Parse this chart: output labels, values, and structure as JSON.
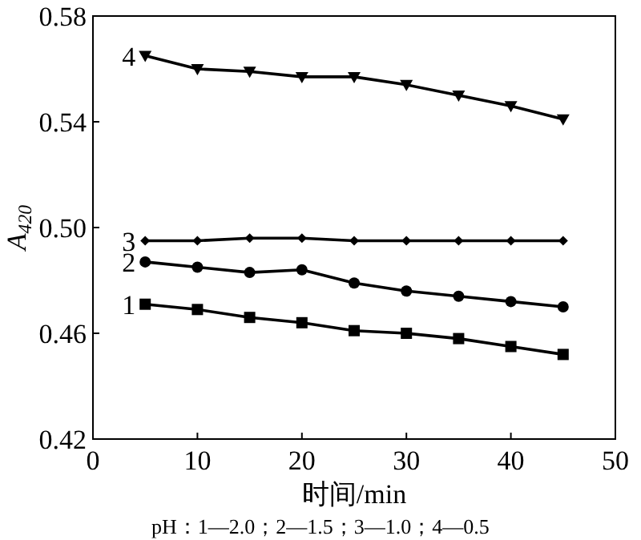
{
  "chart_data": {
    "type": "line",
    "xlabel": "时间/min",
    "ylabel": "A$_{420}$",
    "x": [
      5,
      10,
      15,
      20,
      25,
      30,
      35,
      40,
      45
    ],
    "series": [
      {
        "name": "1",
        "color": "#000000",
        "marker": "square",
        "values": [
          0.471,
          0.469,
          0.466,
          0.464,
          0.461,
          0.46,
          0.458,
          0.455,
          0.452
        ]
      },
      {
        "name": "2",
        "color": "#000000",
        "marker": "circle",
        "values": [
          0.487,
          0.485,
          0.483,
          0.484,
          0.479,
          0.476,
          0.474,
          0.472,
          0.47
        ]
      },
      {
        "name": "3",
        "color": "#000000",
        "marker": "diamond",
        "values": [
          0.495,
          0.495,
          0.496,
          0.496,
          0.495,
          0.495,
          0.495,
          0.495,
          0.495
        ]
      },
      {
        "name": "4",
        "color": "#000000",
        "marker": "triangle",
        "values": [
          0.565,
          0.56,
          0.559,
          0.557,
          0.557,
          0.554,
          0.55,
          0.546,
          0.541
        ]
      }
    ],
    "xlim": [
      0,
      50
    ],
    "xticks": [
      0,
      10,
      20,
      30,
      40,
      50
    ],
    "ylim": [
      0.42,
      0.58
    ],
    "yticks": [
      {
        "value": 0.42,
        "label": "0.42"
      },
      {
        "value": 0.46,
        "label": "0.46"
      },
      {
        "value": 0.5,
        "label": "0.50"
      },
      {
        "value": 0.54,
        "label": "0.54"
      },
      {
        "value": 0.58,
        "label": "0.58"
      }
    ],
    "grid": false,
    "line_style": "solid",
    "annotations": [
      "pH：1—2.0；2—1.5；3—1.0；4—0.5"
    ]
  }
}
